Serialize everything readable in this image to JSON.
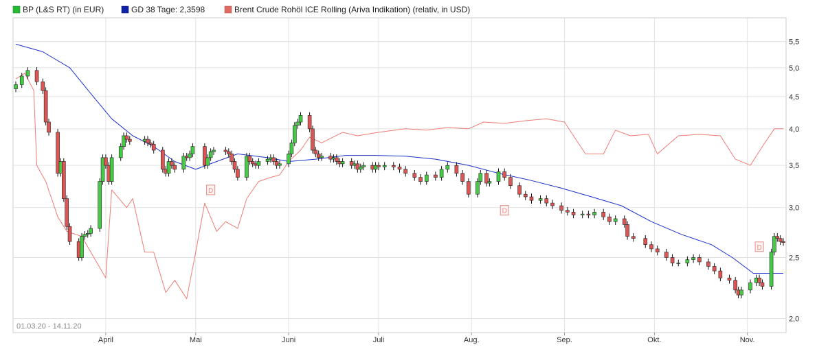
{
  "chart_data": {
    "type": "candlestick",
    "date_range_label": "01.03.20 - 14.11.20",
    "y_scale": "log",
    "ylim": [
      1.9,
      6.0
    ],
    "y_ticks": [
      {
        "value": 2.0,
        "label": "2,0"
      },
      {
        "value": 2.5,
        "label": "2,5"
      },
      {
        "value": 3.0,
        "label": "3,0"
      },
      {
        "value": 3.5,
        "label": "3,5"
      },
      {
        "value": 4.0,
        "label": "4,0"
      },
      {
        "value": 4.5,
        "label": "4,5"
      },
      {
        "value": 5.0,
        "label": "5,0"
      },
      {
        "value": 5.5,
        "label": "5,5"
      }
    ],
    "x_range": [
      "2020-03-02",
      "2020-11-13"
    ],
    "x_ticks": [
      {
        "date": "2020-04-01",
        "label": "April"
      },
      {
        "date": "2020-05-01",
        "label": "Mai"
      },
      {
        "date": "2020-06-01",
        "label": "Juni"
      },
      {
        "date": "2020-07-01",
        "label": "Juli"
      },
      {
        "date": "2020-08-01",
        "label": "Aug."
      },
      {
        "date": "2020-09-01",
        "label": "Sep."
      },
      {
        "date": "2020-10-01",
        "label": "Okt."
      },
      {
        "date": "2020-11-01",
        "label": "Nov."
      }
    ],
    "grid": true,
    "legend_position": "top-left",
    "legend": [
      {
        "label": "BP (L&S RT) (in EUR)",
        "color": "#22bb33"
      },
      {
        "label": "GD 38 Tage: 2,3598",
        "color": "#1122aa"
      },
      {
        "label": "Brent Crude Rohöl ICE Rolling (Ariva Indikation) (relativ, in USD)",
        "color": "#e06a62"
      }
    ],
    "colors": {
      "up": "#44cc44",
      "down": "#dd5555",
      "wick": "#111111",
      "ma": "#1a2fcc",
      "brent": "#ef7b74",
      "grid": "#e2e2e2",
      "marker": "#e58a83"
    },
    "bp_close": [
      [
        "2020-03-02",
        4.7
      ],
      [
        "2020-03-04",
        4.85
      ],
      [
        "2020-03-06",
        4.95
      ],
      [
        "2020-03-09",
        4.75
      ],
      [
        "2020-03-11",
        4.6
      ],
      [
        "2020-03-12",
        4.1
      ],
      [
        "2020-03-13",
        3.95
      ],
      [
        "2020-03-16",
        3.4
      ],
      [
        "2020-03-17",
        3.55
      ],
      [
        "2020-03-18",
        3.1
      ],
      [
        "2020-03-19",
        2.8
      ],
      [
        "2020-03-20",
        2.65
      ],
      [
        "2020-03-23",
        2.5
      ],
      [
        "2020-03-24",
        2.7
      ],
      [
        "2020-03-25",
        2.72
      ],
      [
        "2020-03-26",
        2.73
      ],
      [
        "2020-03-27",
        2.78
      ],
      [
        "2020-03-30",
        3.3
      ],
      [
        "2020-03-31",
        3.6
      ],
      [
        "2020-04-01",
        3.5
      ],
      [
        "2020-04-02",
        3.3
      ],
      [
        "2020-04-03",
        3.6
      ],
      [
        "2020-04-06",
        3.75
      ],
      [
        "2020-04-07",
        3.9
      ],
      [
        "2020-04-08",
        3.85
      ],
      [
        "2020-04-09",
        3.82
      ],
      [
        "2020-04-14",
        3.85
      ],
      [
        "2020-04-15",
        3.8
      ],
      [
        "2020-04-16",
        3.78
      ],
      [
        "2020-04-17",
        3.7
      ],
      [
        "2020-04-20",
        3.45
      ],
      [
        "2020-04-21",
        3.4
      ],
      [
        "2020-04-22",
        3.55
      ],
      [
        "2020-04-23",
        3.5
      ],
      [
        "2020-04-24",
        3.45
      ],
      [
        "2020-04-27",
        3.62
      ],
      [
        "2020-04-28",
        3.6
      ],
      [
        "2020-04-29",
        3.65
      ],
      [
        "2020-04-30",
        3.75
      ],
      [
        "2020-05-04",
        3.5
      ],
      [
        "2020-05-05",
        3.6
      ],
      [
        "2020-05-06",
        3.68
      ],
      [
        "2020-05-07",
        3.7
      ],
      [
        "2020-05-11",
        3.68
      ],
      [
        "2020-05-12",
        3.65
      ],
      [
        "2020-05-13",
        3.55
      ],
      [
        "2020-05-14",
        3.45
      ],
      [
        "2020-05-15",
        3.35
      ],
      [
        "2020-05-18",
        3.62
      ],
      [
        "2020-05-19",
        3.55
      ],
      [
        "2020-05-20",
        3.52
      ],
      [
        "2020-05-21",
        3.5
      ],
      [
        "2020-05-22",
        3.55
      ],
      [
        "2020-05-25",
        3.58
      ],
      [
        "2020-05-26",
        3.6
      ],
      [
        "2020-05-27",
        3.55
      ],
      [
        "2020-05-28",
        3.5
      ],
      [
        "2020-05-29",
        3.52
      ],
      [
        "2020-06-01",
        3.65
      ],
      [
        "2020-06-02",
        3.8
      ],
      [
        "2020-06-03",
        4.05
      ],
      [
        "2020-06-04",
        4.1
      ],
      [
        "2020-06-05",
        4.2
      ],
      [
        "2020-06-08",
        4.0
      ],
      [
        "2020-06-09",
        3.7
      ],
      [
        "2020-06-10",
        3.65
      ],
      [
        "2020-06-11",
        3.6
      ],
      [
        "2020-06-12",
        3.62
      ],
      [
        "2020-06-15",
        3.58
      ],
      [
        "2020-06-16",
        3.6
      ],
      [
        "2020-06-17",
        3.55
      ],
      [
        "2020-06-18",
        3.52
      ],
      [
        "2020-06-19",
        3.55
      ],
      [
        "2020-06-22",
        3.5
      ],
      [
        "2020-06-23",
        3.52
      ],
      [
        "2020-06-24",
        3.45
      ],
      [
        "2020-06-25",
        3.48
      ],
      [
        "2020-06-26",
        3.5
      ],
      [
        "2020-06-29",
        3.45
      ],
      [
        "2020-06-30",
        3.5
      ],
      [
        "2020-07-01",
        3.48
      ],
      [
        "2020-07-03",
        3.5
      ],
      [
        "2020-07-06",
        3.48
      ],
      [
        "2020-07-08",
        3.45
      ],
      [
        "2020-07-10",
        3.4
      ],
      [
        "2020-07-13",
        3.35
      ],
      [
        "2020-07-15",
        3.3
      ],
      [
        "2020-07-17",
        3.38
      ],
      [
        "2020-07-20",
        3.35
      ],
      [
        "2020-07-22",
        3.45
      ],
      [
        "2020-07-24",
        3.5
      ],
      [
        "2020-07-27",
        3.4
      ],
      [
        "2020-07-29",
        3.3
      ],
      [
        "2020-07-31",
        3.15
      ],
      [
        "2020-08-03",
        3.3
      ],
      [
        "2020-08-04",
        3.4
      ],
      [
        "2020-08-06",
        3.28
      ],
      [
        "2020-08-07",
        3.3
      ],
      [
        "2020-08-10",
        3.42
      ],
      [
        "2020-08-12",
        3.35
      ],
      [
        "2020-08-14",
        3.25
      ],
      [
        "2020-08-17",
        3.15
      ],
      [
        "2020-08-19",
        3.12
      ],
      [
        "2020-08-21",
        3.08
      ],
      [
        "2020-08-24",
        3.1
      ],
      [
        "2020-08-26",
        3.05
      ],
      [
        "2020-08-28",
        3.02
      ],
      [
        "2020-08-31",
        2.97
      ],
      [
        "2020-09-02",
        2.95
      ],
      [
        "2020-09-04",
        2.92
      ],
      [
        "2020-09-07",
        2.93
      ],
      [
        "2020-09-09",
        2.92
      ],
      [
        "2020-09-11",
        2.95
      ],
      [
        "2020-09-14",
        2.9
      ],
      [
        "2020-09-16",
        2.85
      ],
      [
        "2020-09-18",
        2.88
      ],
      [
        "2020-09-21",
        2.82
      ],
      [
        "2020-09-22",
        2.7
      ],
      [
        "2020-09-24",
        2.68
      ],
      [
        "2020-09-28",
        2.62
      ],
      [
        "2020-09-30",
        2.58
      ],
      [
        "2020-10-02",
        2.55
      ],
      [
        "2020-10-05",
        2.5
      ],
      [
        "2020-10-07",
        2.45
      ],
      [
        "2020-10-09",
        2.45
      ],
      [
        "2020-10-12",
        2.48
      ],
      [
        "2020-10-14",
        2.5
      ],
      [
        "2020-10-16",
        2.46
      ],
      [
        "2020-10-19",
        2.42
      ],
      [
        "2020-10-21",
        2.38
      ],
      [
        "2020-10-23",
        2.32
      ],
      [
        "2020-10-26",
        2.3
      ],
      [
        "2020-10-28",
        2.22
      ],
      [
        "2020-10-29",
        2.18
      ],
      [
        "2020-10-30",
        2.22
      ],
      [
        "2020-11-02",
        2.28
      ],
      [
        "2020-11-04",
        2.32
      ],
      [
        "2020-11-05",
        2.28
      ],
      [
        "2020-11-06",
        2.25
      ],
      [
        "2020-11-09",
        2.55
      ],
      [
        "2020-11-10",
        2.7
      ],
      [
        "2020-11-11",
        2.68
      ],
      [
        "2020-11-12",
        2.65
      ],
      [
        "2020-11-13",
        2.64
      ]
    ],
    "gd38_series": [
      [
        "2020-03-02",
        5.45
      ],
      [
        "2020-03-11",
        5.3
      ],
      [
        "2020-03-20",
        5.0
      ],
      [
        "2020-03-27",
        4.55
      ],
      [
        "2020-04-03",
        4.15
      ],
      [
        "2020-04-10",
        3.9
      ],
      [
        "2020-04-17",
        3.75
      ],
      [
        "2020-04-24",
        3.55
      ],
      [
        "2020-05-01",
        3.45
      ],
      [
        "2020-05-08",
        3.55
      ],
      [
        "2020-05-15",
        3.65
      ],
      [
        "2020-05-25",
        3.6
      ],
      [
        "2020-06-01",
        3.55
      ],
      [
        "2020-06-10",
        3.58
      ],
      [
        "2020-06-20",
        3.63
      ],
      [
        "2020-06-30",
        3.63
      ],
      [
        "2020-07-10",
        3.62
      ],
      [
        "2020-07-20",
        3.58
      ],
      [
        "2020-07-31",
        3.5
      ],
      [
        "2020-08-10",
        3.4
      ],
      [
        "2020-08-20",
        3.32
      ],
      [
        "2020-08-31",
        3.22
      ],
      [
        "2020-09-10",
        3.12
      ],
      [
        "2020-09-20",
        3.02
      ],
      [
        "2020-09-30",
        2.85
      ],
      [
        "2020-10-10",
        2.72
      ],
      [
        "2020-10-20",
        2.62
      ],
      [
        "2020-10-27",
        2.5
      ],
      [
        "2020-11-03",
        2.36
      ],
      [
        "2020-11-13",
        2.36
      ]
    ],
    "brent_relative": [
      [
        "2020-03-02",
        4.8
      ],
      [
        "2020-03-05",
        4.9
      ],
      [
        "2020-03-08",
        4.6
      ],
      [
        "2020-03-09",
        3.5
      ],
      [
        "2020-03-12",
        3.3
      ],
      [
        "2020-03-16",
        2.9
      ],
      [
        "2020-03-19",
        2.75
      ],
      [
        "2020-03-24",
        2.7
      ],
      [
        "2020-03-27",
        2.55
      ],
      [
        "2020-04-01",
        2.32
      ],
      [
        "2020-04-03",
        3.2
      ],
      [
        "2020-04-08",
        3.0
      ],
      [
        "2020-04-10",
        3.1
      ],
      [
        "2020-04-14",
        2.55
      ],
      [
        "2020-04-17",
        2.55
      ],
      [
        "2020-04-21",
        2.2
      ],
      [
        "2020-04-24",
        2.3
      ],
      [
        "2020-04-28",
        2.15
      ],
      [
        "2020-05-01",
        2.55
      ],
      [
        "2020-05-04",
        3.05
      ],
      [
        "2020-05-08",
        2.75
      ],
      [
        "2020-05-11",
        2.85
      ],
      [
        "2020-05-15",
        2.78
      ],
      [
        "2020-05-18",
        3.1
      ],
      [
        "2020-05-22",
        3.3
      ],
      [
        "2020-05-26",
        3.35
      ],
      [
        "2020-05-29",
        3.38
      ],
      [
        "2020-06-01",
        3.55
      ],
      [
        "2020-06-05",
        3.7
      ],
      [
        "2020-06-08",
        3.88
      ],
      [
        "2020-06-12",
        3.8
      ],
      [
        "2020-06-19",
        3.95
      ],
      [
        "2020-06-24",
        3.9
      ],
      [
        "2020-07-01",
        3.95
      ],
      [
        "2020-07-10",
        4.0
      ],
      [
        "2020-07-17",
        3.98
      ],
      [
        "2020-07-24",
        4.02
      ],
      [
        "2020-07-31",
        4.0
      ],
      [
        "2020-08-05",
        4.1
      ],
      [
        "2020-08-12",
        4.08
      ],
      [
        "2020-08-19",
        4.12
      ],
      [
        "2020-08-26",
        4.15
      ],
      [
        "2020-09-01",
        4.1
      ],
      [
        "2020-09-04",
        3.9
      ],
      [
        "2020-09-08",
        3.65
      ],
      [
        "2020-09-14",
        3.65
      ],
      [
        "2020-09-18",
        3.98
      ],
      [
        "2020-09-23",
        3.9
      ],
      [
        "2020-09-29",
        3.92
      ],
      [
        "2020-10-02",
        3.65
      ],
      [
        "2020-10-09",
        3.9
      ],
      [
        "2020-10-16",
        3.92
      ],
      [
        "2020-10-23",
        3.9
      ],
      [
        "2020-10-28",
        3.58
      ],
      [
        "2020-11-02",
        3.5
      ],
      [
        "2020-11-06",
        3.75
      ],
      [
        "2020-11-10",
        4.0
      ],
      [
        "2020-11-13",
        4.0
      ]
    ],
    "markers": [
      {
        "date": "2020-05-06",
        "y": 3.2,
        "label": "D"
      },
      {
        "date": "2020-08-12",
        "y": 2.97,
        "label": "D"
      },
      {
        "date": "2020-11-05",
        "y": 2.6,
        "label": "D"
      }
    ]
  }
}
